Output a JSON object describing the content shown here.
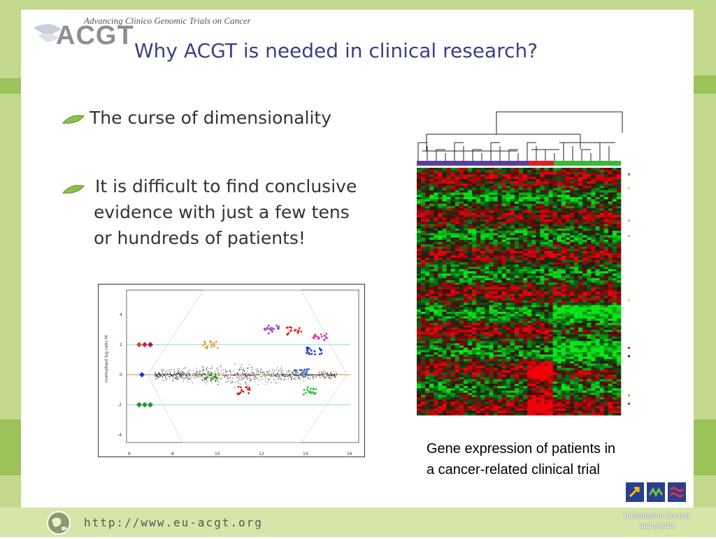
{
  "header": {
    "tagline": "Advancing Clinico Genomic Trials on Cancer",
    "logo_text": "ACGT",
    "title": "Why ACGT is needed in clinical research?"
  },
  "bullets": [
    {
      "text": "The curse of dimensionality"
    },
    {
      "lines": [
        "It is difficult to find conclusive",
        "evidence with just a few tens",
        "or hundreds of patients!"
      ]
    }
  ],
  "ma_plot": {
    "ylabel": "normalised log ratio M",
    "x_ticks": [
      "6",
      "8",
      "10",
      "12",
      "14",
      "16"
    ],
    "y_ticks": [
      "4",
      "2",
      "0",
      "-2",
      "-4"
    ]
  },
  "heatmap": {
    "group_colors": [
      "#5b3fa0",
      "#e0201e",
      "#3db83a"
    ]
  },
  "caption": {
    "lines": [
      "Gene expression of patients in",
      "a cancer-related clinical trial"
    ]
  },
  "footer": {
    "url": "http://www.eu-acgt.org",
    "ism_lines": [
      "Information Society",
      "and Media"
    ]
  },
  "colors": {
    "title": "#3b3f86",
    "border_green": "#c2d98e"
  }
}
